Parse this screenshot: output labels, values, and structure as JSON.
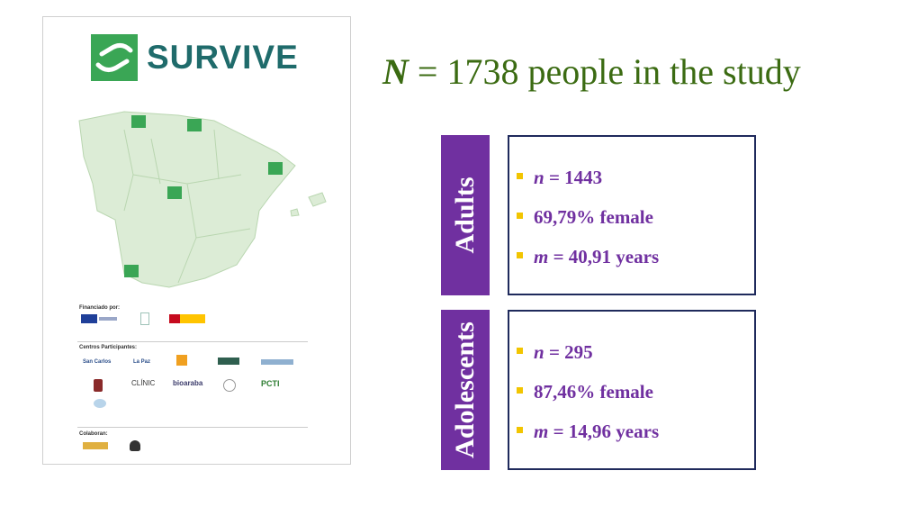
{
  "poster": {
    "brand_name": "SURVIVE",
    "funded_label": "Financiado por:",
    "centers_label": "Centros Participantes:",
    "collaborators_label": "Colaboran:",
    "center_logos": [
      "San Carlos",
      "La Paz",
      "CLÍNIC",
      "bioaraba",
      "PCTI"
    ]
  },
  "headline": {
    "variable": "N",
    "text": " = 1738 people in the study"
  },
  "groups": [
    {
      "label": "Adults",
      "items": [
        {
          "prefix": "n",
          "text": " = 1443"
        },
        {
          "prefix": "",
          "text": "69,79% female"
        },
        {
          "prefix": "m",
          "text": " = 40,91 years"
        }
      ]
    },
    {
      "label": "Adolescents",
      "items": [
        {
          "prefix": "n",
          "text": " = 295"
        },
        {
          "prefix": "",
          "text": "87,46% female"
        },
        {
          "prefix": "m",
          "text": " = 14,96 years"
        }
      ]
    }
  ],
  "colors": {
    "accent": "#7030a0",
    "headline": "#3b6b12",
    "bullet": "#f2c500",
    "box_border": "#1f2a5c",
    "brand": "#1f6b6b",
    "map": "#d9ead3"
  }
}
